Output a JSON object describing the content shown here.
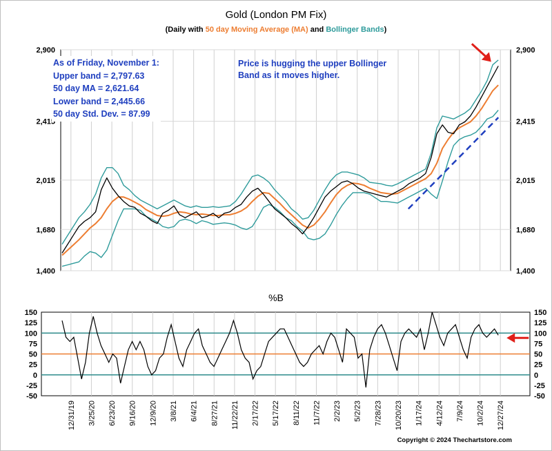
{
  "chart_data": [
    {
      "type": "line",
      "title": "Gold (London PM Fix)",
      "subtitle_parts": [
        "(Daily with ",
        "50 day Moving Average (MA)",
        " and ",
        "Bollinger Bands",
        ")"
      ],
      "ylim": [
        1400,
        2900
      ],
      "y_ticks": [
        1400,
        1680,
        2015,
        2415,
        2900
      ],
      "y_tick_labels": [
        "1,400",
        "1,680",
        "2,015",
        "2,415",
        "2,900"
      ],
      "x_tick_labels": [
        "12/31/19",
        "3/25/20",
        "6/23/20",
        "9/16/20",
        "12/9/20",
        "3/8/21",
        "6/4/21",
        "8/27/21",
        "11/22/21",
        "2/17/22",
        "5/17/22",
        "8/11/22",
        "11/7/22",
        "2/2/23",
        "5/2/23",
        "7/28/23",
        "10/20/23",
        "1/17/24",
        "4/12/24",
        "7/9/24",
        "10/2/24",
        "12/27/24"
      ],
      "series": [
        {
          "name": "Gold",
          "color": "#000000",
          "values": [
            1520,
            1580,
            1640,
            1700,
            1735,
            1760,
            1800,
            1950,
            2030,
            1960,
            1910,
            1870,
            1840,
            1830,
            1790,
            1770,
            1740,
            1720,
            1790,
            1810,
            1840,
            1780,
            1760,
            1780,
            1800,
            1760,
            1770,
            1790,
            1760,
            1790,
            1800,
            1830,
            1850,
            1900,
            1940,
            1960,
            1920,
            1870,
            1820,
            1790,
            1760,
            1720,
            1690,
            1650,
            1700,
            1760,
            1830,
            1900,
            1940,
            1970,
            2000,
            2010,
            1990,
            1960,
            1940,
            1930,
            1920,
            1910,
            1900,
            1920,
            1940,
            1960,
            1990,
            2010,
            2030,
            2060,
            2170,
            2330,
            2390,
            2340,
            2330,
            2390,
            2410,
            2450,
            2510,
            2580,
            2650,
            2720,
            2790
          ]
        },
        {
          "name": "50 day Moving Average (MA)",
          "color": "#ed7d31",
          "values": [
            1505,
            1540,
            1575,
            1610,
            1650,
            1690,
            1720,
            1760,
            1820,
            1870,
            1900,
            1900,
            1885,
            1865,
            1845,
            1815,
            1795,
            1775,
            1770,
            1775,
            1790,
            1800,
            1795,
            1785,
            1780,
            1785,
            1780,
            1775,
            1775,
            1780,
            1780,
            1790,
            1805,
            1830,
            1870,
            1905,
            1930,
            1925,
            1890,
            1855,
            1815,
            1780,
            1745,
            1710,
            1690,
            1710,
            1750,
            1800,
            1860,
            1915,
            1955,
            1980,
            1995,
            1990,
            1980,
            1960,
            1945,
            1930,
            1925,
            1920,
            1925,
            1945,
            1965,
            1985,
            2005,
            2025,
            2060,
            2130,
            2230,
            2290,
            2340,
            2370,
            2390,
            2410,
            2450,
            2500,
            2560,
            2621.64,
            2660
          ]
        },
        {
          "name": "Upper band",
          "color": "#2e9b9b",
          "values": [
            1580,
            1640,
            1700,
            1760,
            1800,
            1850,
            1920,
            2030,
            2100,
            2100,
            2060,
            1980,
            1950,
            1910,
            1880,
            1860,
            1840,
            1820,
            1840,
            1860,
            1880,
            1860,
            1840,
            1830,
            1840,
            1830,
            1830,
            1835,
            1830,
            1835,
            1840,
            1870,
            1920,
            1980,
            2040,
            2050,
            2030,
            2000,
            1950,
            1910,
            1870,
            1820,
            1790,
            1750,
            1760,
            1810,
            1880,
            1950,
            2010,
            2050,
            2070,
            2070,
            2060,
            2050,
            2030,
            2000,
            1995,
            1990,
            1980,
            1975,
            1990,
            2010,
            2030,
            2050,
            2070,
            2090,
            2200,
            2370,
            2450,
            2440,
            2430,
            2450,
            2470,
            2500,
            2560,
            2620,
            2690,
            2797.63,
            2830
          ]
        },
        {
          "name": "Lower band",
          "color": "#2e9b9b",
          "values": [
            1430,
            1440,
            1450,
            1460,
            1500,
            1530,
            1520,
            1490,
            1540,
            1640,
            1740,
            1820,
            1820,
            1820,
            1810,
            1770,
            1750,
            1730,
            1700,
            1690,
            1700,
            1740,
            1750,
            1740,
            1720,
            1740,
            1730,
            1715,
            1720,
            1725,
            1720,
            1710,
            1690,
            1680,
            1700,
            1760,
            1830,
            1850,
            1830,
            1800,
            1760,
            1740,
            1700,
            1670,
            1620,
            1610,
            1620,
            1650,
            1710,
            1780,
            1840,
            1890,
            1930,
            1930,
            1930,
            1920,
            1895,
            1870,
            1870,
            1865,
            1860,
            1880,
            1900,
            1920,
            1940,
            1960,
            1920,
            1890,
            2010,
            2140,
            2250,
            2290,
            2310,
            2320,
            2340,
            2380,
            2430,
            2445.66,
            2490
          ]
        }
      ],
      "annotations": [
        {
          "text_lines": [
            "As of Friday, November 1:",
            "Upper band = 2,797.63",
            "50 day MA = 2,621.64",
            "Lower band = 2,445.66",
            "50 day Std. Dev. = 87.99"
          ],
          "color": "#1f3fbf"
        },
        {
          "text_lines": [
            "Price is hugging the upper Bollinger",
            "Band as it moves higher."
          ],
          "color": "#1f3fbf"
        }
      ],
      "trendline": {
        "color": "#1f3fbf",
        "style": "dashed",
        "from": [
          16.5,
          1820
        ],
        "to": [
          20.9,
          2440
        ]
      },
      "arrow_color": "#e0201a",
      "grid": true
    },
    {
      "type": "line",
      "title": "%B",
      "ylim": [
        -50,
        150
      ],
      "y_ticks": [
        -50,
        -25,
        0,
        25,
        50,
        75,
        100,
        125,
        150
      ],
      "y_tick_labels": [
        "-50",
        "-25",
        "0",
        "25",
        "50",
        "75",
        "100",
        "125",
        "150"
      ],
      "reference_lines": [
        {
          "value": 100,
          "color": "#2e8b8b"
        },
        {
          "value": 50,
          "color": "#ed7d31"
        },
        {
          "value": 0,
          "color": "#2e8b8b"
        }
      ],
      "series": [
        {
          "name": "%B",
          "color": "#000000",
          "values": [
            130,
            90,
            80,
            90,
            40,
            -10,
            30,
            100,
            140,
            100,
            70,
            50,
            30,
            50,
            40,
            -20,
            20,
            60,
            80,
            60,
            80,
            60,
            20,
            0,
            10,
            40,
            50,
            90,
            120,
            80,
            40,
            20,
            60,
            80,
            100,
            110,
            70,
            50,
            30,
            20,
            40,
            60,
            80,
            100,
            130,
            100,
            60,
            40,
            30,
            -10,
            10,
            20,
            50,
            80,
            90,
            100,
            110,
            110,
            90,
            70,
            50,
            30,
            20,
            30,
            50,
            60,
            70,
            50,
            80,
            100,
            90,
            60,
            30,
            110,
            100,
            90,
            40,
            50,
            -30,
            60,
            90,
            110,
            120,
            100,
            70,
            40,
            10,
            80,
            100,
            110,
            100,
            90,
            110,
            60,
            100,
            150,
            120,
            90,
            70,
            100,
            110,
            120,
            90,
            60,
            40,
            90,
            110,
            120,
            100,
            90,
            100,
            110,
            95
          ]
        }
      ],
      "arrow_color": "#e0201a",
      "grid": true
    }
  ],
  "texts": {
    "stats": [
      "As of Friday, November 1:",
      "Upper band = 2,797.63",
      "50 day MA = 2,621.64",
      "Lower band = 2,445.66",
      "50 day Std. Dev. = 87.99"
    ],
    "note": [
      "Price is hugging the upper Bollinger",
      "Band as it moves higher."
    ],
    "copyright": "Copyright © 2024 Thechartstore.com"
  }
}
